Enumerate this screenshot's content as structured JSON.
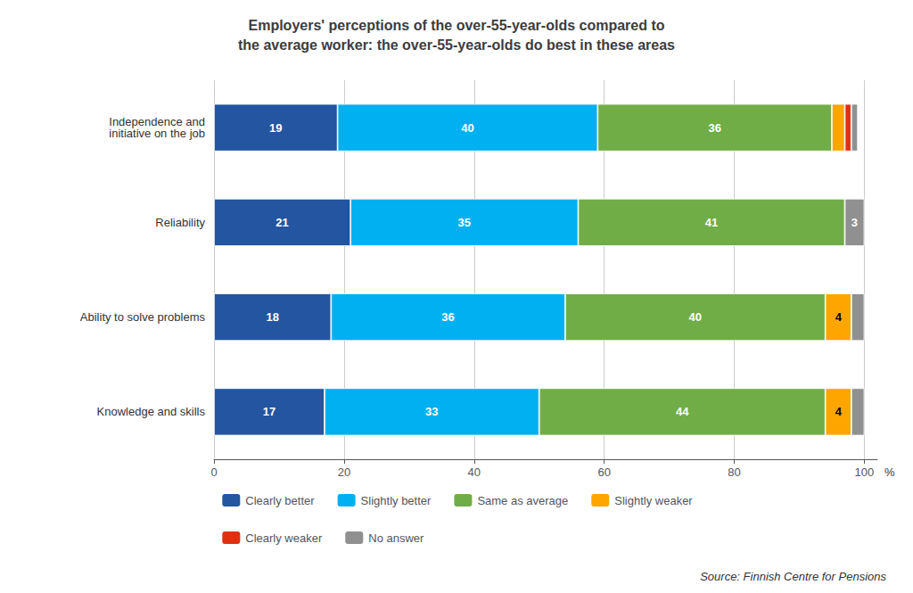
{
  "chart_data": {
    "type": "bar",
    "orientation": "horizontal",
    "stacked": true,
    "title": "Employers' perceptions of the over-55-year-olds compared to\nthe average worker: the over-55-year-olds do best in these areas",
    "xlabel": "%",
    "annotations": [
      "Source: Finnish Centre for Pensions"
    ],
    "categories": [
      "Knowledge and skills",
      "Ability to solve problems",
      "Reliability",
      "Independence and\ninitiative on the job"
    ],
    "series": [
      {
        "name": "Clearly better",
        "color": "#2355a0",
        "values": [
          17,
          18,
          21,
          19
        ],
        "value_labels": [
          "17",
          "18",
          "21",
          "19"
        ]
      },
      {
        "name": "Slightly better",
        "color": "#00b0f0",
        "values": [
          33,
          36,
          35,
          40
        ],
        "value_labels": [
          "33",
          "36",
          "35",
          "40"
        ]
      },
      {
        "name": "Same as average",
        "color": "#70ad47",
        "values": [
          44,
          40,
          41,
          36
        ],
        "value_labels": [
          "44",
          "40",
          "41",
          "36"
        ]
      },
      {
        "name": "Slightly weaker",
        "color": "#ffa500",
        "values": [
          4,
          4,
          0,
          2
        ],
        "value_labels": [
          "4",
          "4",
          null,
          null
        ]
      },
      {
        "name": "Clearly weaker",
        "color": "#e03010",
        "values": [
          0,
          0,
          0,
          1
        ],
        "value_labels": [
          null,
          null,
          null,
          null
        ]
      },
      {
        "name": "No answer",
        "color": "#909090",
        "values": [
          2,
          2,
          3,
          1
        ],
        "value_labels": [
          null,
          null,
          "3",
          null
        ]
      }
    ],
    "xlim": [
      0,
      102
    ],
    "xticks": [
      0,
      20,
      40,
      60,
      80,
      100
    ],
    "grid": true,
    "legend": "bottom",
    "data_labels": true
  }
}
